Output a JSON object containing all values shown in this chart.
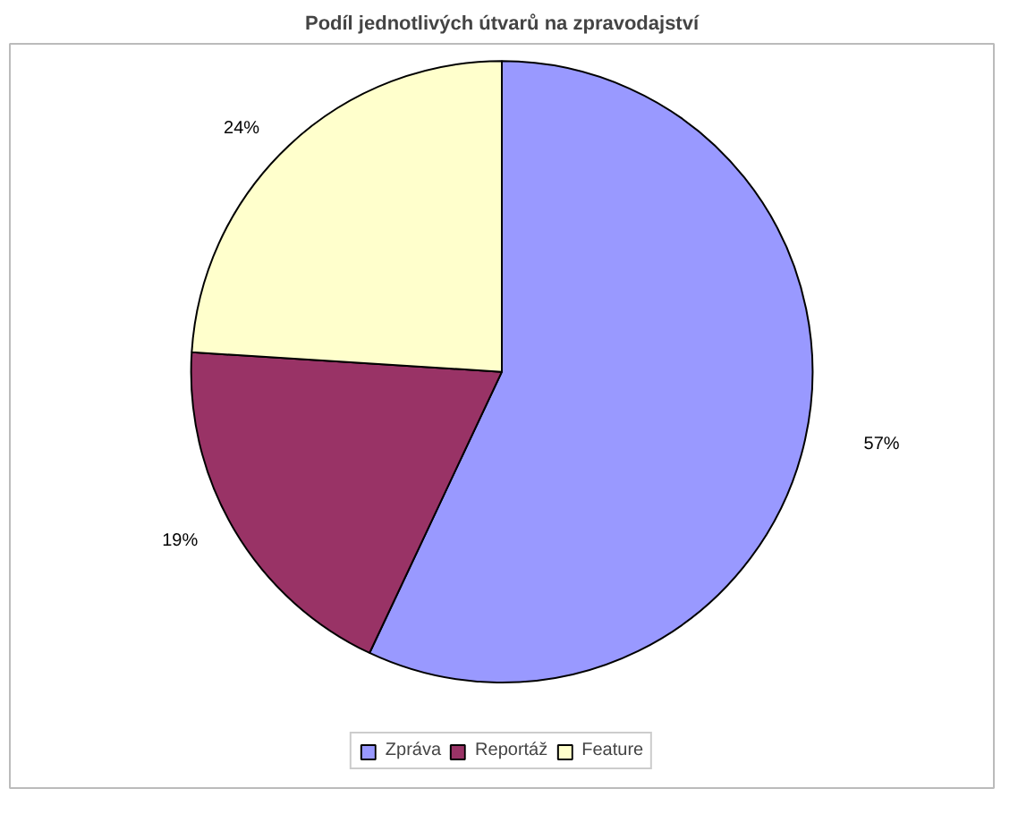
{
  "chart_data": {
    "type": "pie",
    "title": "Podíl jednotlivých útvarů na zpravodajství",
    "categories": [
      "Zpráva",
      "Reportáž",
      "Feature"
    ],
    "values": [
      57,
      19,
      24
    ],
    "colors": [
      "#9999ff",
      "#993366",
      "#ffffcc"
    ],
    "value_labels": [
      "57%",
      "19%",
      "24%"
    ],
    "legend": "bottom"
  }
}
